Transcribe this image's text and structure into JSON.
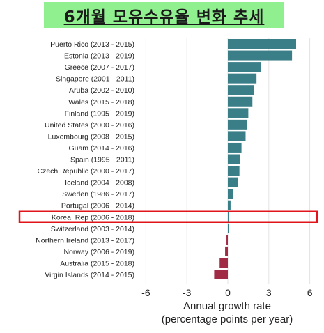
{
  "title": "6개월 모유수유율 변화 추세",
  "subtitle_residue": "",
  "colors": {
    "positive": "#3a7f88",
    "negative": "#a12a45",
    "highlight_box": "#e0151b",
    "banner": "#90ef8e",
    "grid": "#e3e3e3"
  },
  "chart_data": {
    "type": "bar",
    "orientation": "horizontal",
    "categories": [
      "Puerto Rico (2013 - 2015)",
      "Estonia (2013 - 2019)",
      "Greece (2007 - 2017)",
      "Singapore (2001 - 2011)",
      "Aruba (2002 - 2010)",
      "Wales (2015 - 2018)",
      "Finland (1995 - 2019)",
      "United States (2000 - 2016)",
      "Luxembourg (2008 - 2015)",
      "Guam (2014 - 2016)",
      "Spain (1995 - 2011)",
      "Czech Republic (2000 - 2017)",
      "Iceland (2004 - 2008)",
      "Sweden (1986 - 2017)",
      "Portugal (2006 - 2014)",
      "Korea, Rep (2006 - 2018)",
      "Switzerland (2003 - 2014)",
      "Northern Ireland (2013 - 2017)",
      "Norway (2006 - 2019)",
      "Australia (2015 - 2018)",
      "Virgin Islands (2014 - 2015)"
    ],
    "values": [
      5.0,
      4.7,
      2.4,
      2.1,
      1.9,
      1.8,
      1.5,
      1.4,
      1.3,
      1.0,
      0.9,
      0.85,
      0.75,
      0.4,
      0.2,
      0.05,
      0.0,
      -0.1,
      -0.2,
      -0.6,
      -1.0
    ],
    "highlight_category": "Korea, Rep (2006 - 2018)",
    "xlim": [
      -6.5,
      6.5
    ],
    "xticks": [
      -6,
      -3,
      0,
      3,
      6
    ],
    "xtick_labels": [
      "-6",
      "-3",
      "0",
      "3",
      "6"
    ],
    "xlabel_line1": "Annual growth rate",
    "xlabel_line2": "(percentage points per year)",
    "grid": true
  }
}
